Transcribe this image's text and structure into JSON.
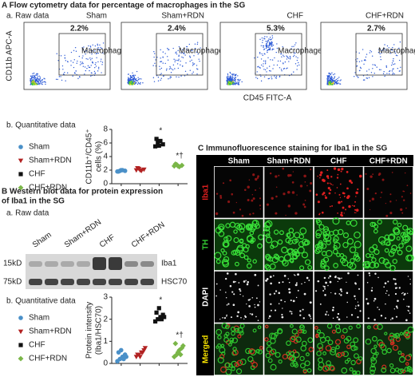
{
  "panel_a": {
    "title": "A Flow cytometry data for percentage of macrophages in the SG",
    "subtitle": "a. Raw data",
    "x_label": "CD45 FITC-A",
    "y_label": "CD11b APC-A",
    "gate_label": "Macrophage",
    "plots": [
      {
        "name": "Sham",
        "percent": "2.2%",
        "color": "#3a7fc1"
      },
      {
        "name": "Sham+RDN",
        "percent": "2.4%",
        "color": "#c8102e"
      },
      {
        "name": "CHF",
        "percent": "5.3%",
        "color": "#111111"
      },
      {
        "name": "CHF+RDN",
        "percent": "2.7%",
        "color": "#6aa84f"
      }
    ]
  },
  "chart_data": [
    {
      "type": "scatter",
      "subtitle": "b. Quantitative data",
      "y_label": [
        "CD11b⁺/CD45⁺",
        "cells (%)"
      ],
      "ylim": [
        0,
        8
      ],
      "yticks": [
        0,
        2,
        4,
        6,
        8
      ],
      "annotations": [
        null,
        null,
        "*",
        "*†"
      ],
      "series": [
        {
          "name": "Sham",
          "color": "#4a90c8",
          "marker": "circle",
          "values": [
            1.8,
            1.9,
            2.0,
            1.9,
            1.8,
            2.0
          ]
        },
        {
          "name": "Sham+RDN",
          "color": "#b22222",
          "marker": "triangle-down",
          "values": [
            2.0,
            2.2,
            1.9,
            2.1,
            2.3,
            2.0
          ]
        },
        {
          "name": "CHF",
          "color": "#111111",
          "marker": "square",
          "values": [
            5.5,
            6.0,
            6.3,
            5.8,
            6.6,
            5.6
          ]
        },
        {
          "name": "CHF+RDN",
          "color": "#7ab648",
          "marker": "diamond",
          "values": [
            2.6,
            2.8,
            2.5,
            2.7,
            2.9,
            2.6
          ]
        }
      ]
    },
    {
      "type": "scatter",
      "subtitle": "b. Quantitative data",
      "y_label": [
        "Protein intensity",
        "(Iba1/HSC70)"
      ],
      "ylim": [
        0,
        3
      ],
      "yticks": [
        0,
        1,
        2,
        3
      ],
      "annotations": [
        null,
        null,
        "*",
        "*†"
      ],
      "series": [
        {
          "name": "Sham",
          "color": "#4a90c8",
          "marker": "circle",
          "values": [
            0.1,
            0.2,
            0.3,
            0.4,
            0.5,
            0.6,
            0.2,
            0.3
          ]
        },
        {
          "name": "Sham+RDN",
          "color": "#b22222",
          "marker": "triangle-down",
          "values": [
            0.3,
            0.4,
            0.5,
            0.6,
            0.4,
            0.3,
            0.5,
            0.7
          ]
        },
        {
          "name": "CHF",
          "color": "#111111",
          "marker": "square",
          "values": [
            1.9,
            2.0,
            2.1,
            2.2,
            2.3,
            2.5,
            2.0,
            2.1
          ]
        },
        {
          "name": "CHF+RDN",
          "color": "#7ab648",
          "marker": "diamond",
          "values": [
            0.3,
            0.4,
            0.6,
            0.7,
            0.9,
            0.5,
            0.4,
            0.8
          ]
        }
      ]
    }
  ],
  "panel_b": {
    "title": [
      "B Western blot data for protein expression",
      "of Iba1 in the SG"
    ],
    "subtitle": "a. Raw data",
    "markers": [
      "15kD",
      "75kD"
    ],
    "proteins": [
      "Iba1",
      "HSC70"
    ],
    "lanes": [
      "Sham",
      "Sham+RDN",
      "CHF",
      "CHF+RDN"
    ]
  },
  "panel_c": {
    "title": "C Immunofluorescence staining for Iba1 in the SG",
    "columns": [
      "Sham",
      "Sham+RDN",
      "CHF",
      "CHF+RDN"
    ],
    "rows": [
      {
        "label": "Iba1",
        "color": "#e02020"
      },
      {
        "label": "TH",
        "color": "#33cc33"
      },
      {
        "label": "DAPI",
        "color": "#ffffff"
      },
      {
        "label": "Merged",
        "color": "#f5e000"
      }
    ]
  }
}
